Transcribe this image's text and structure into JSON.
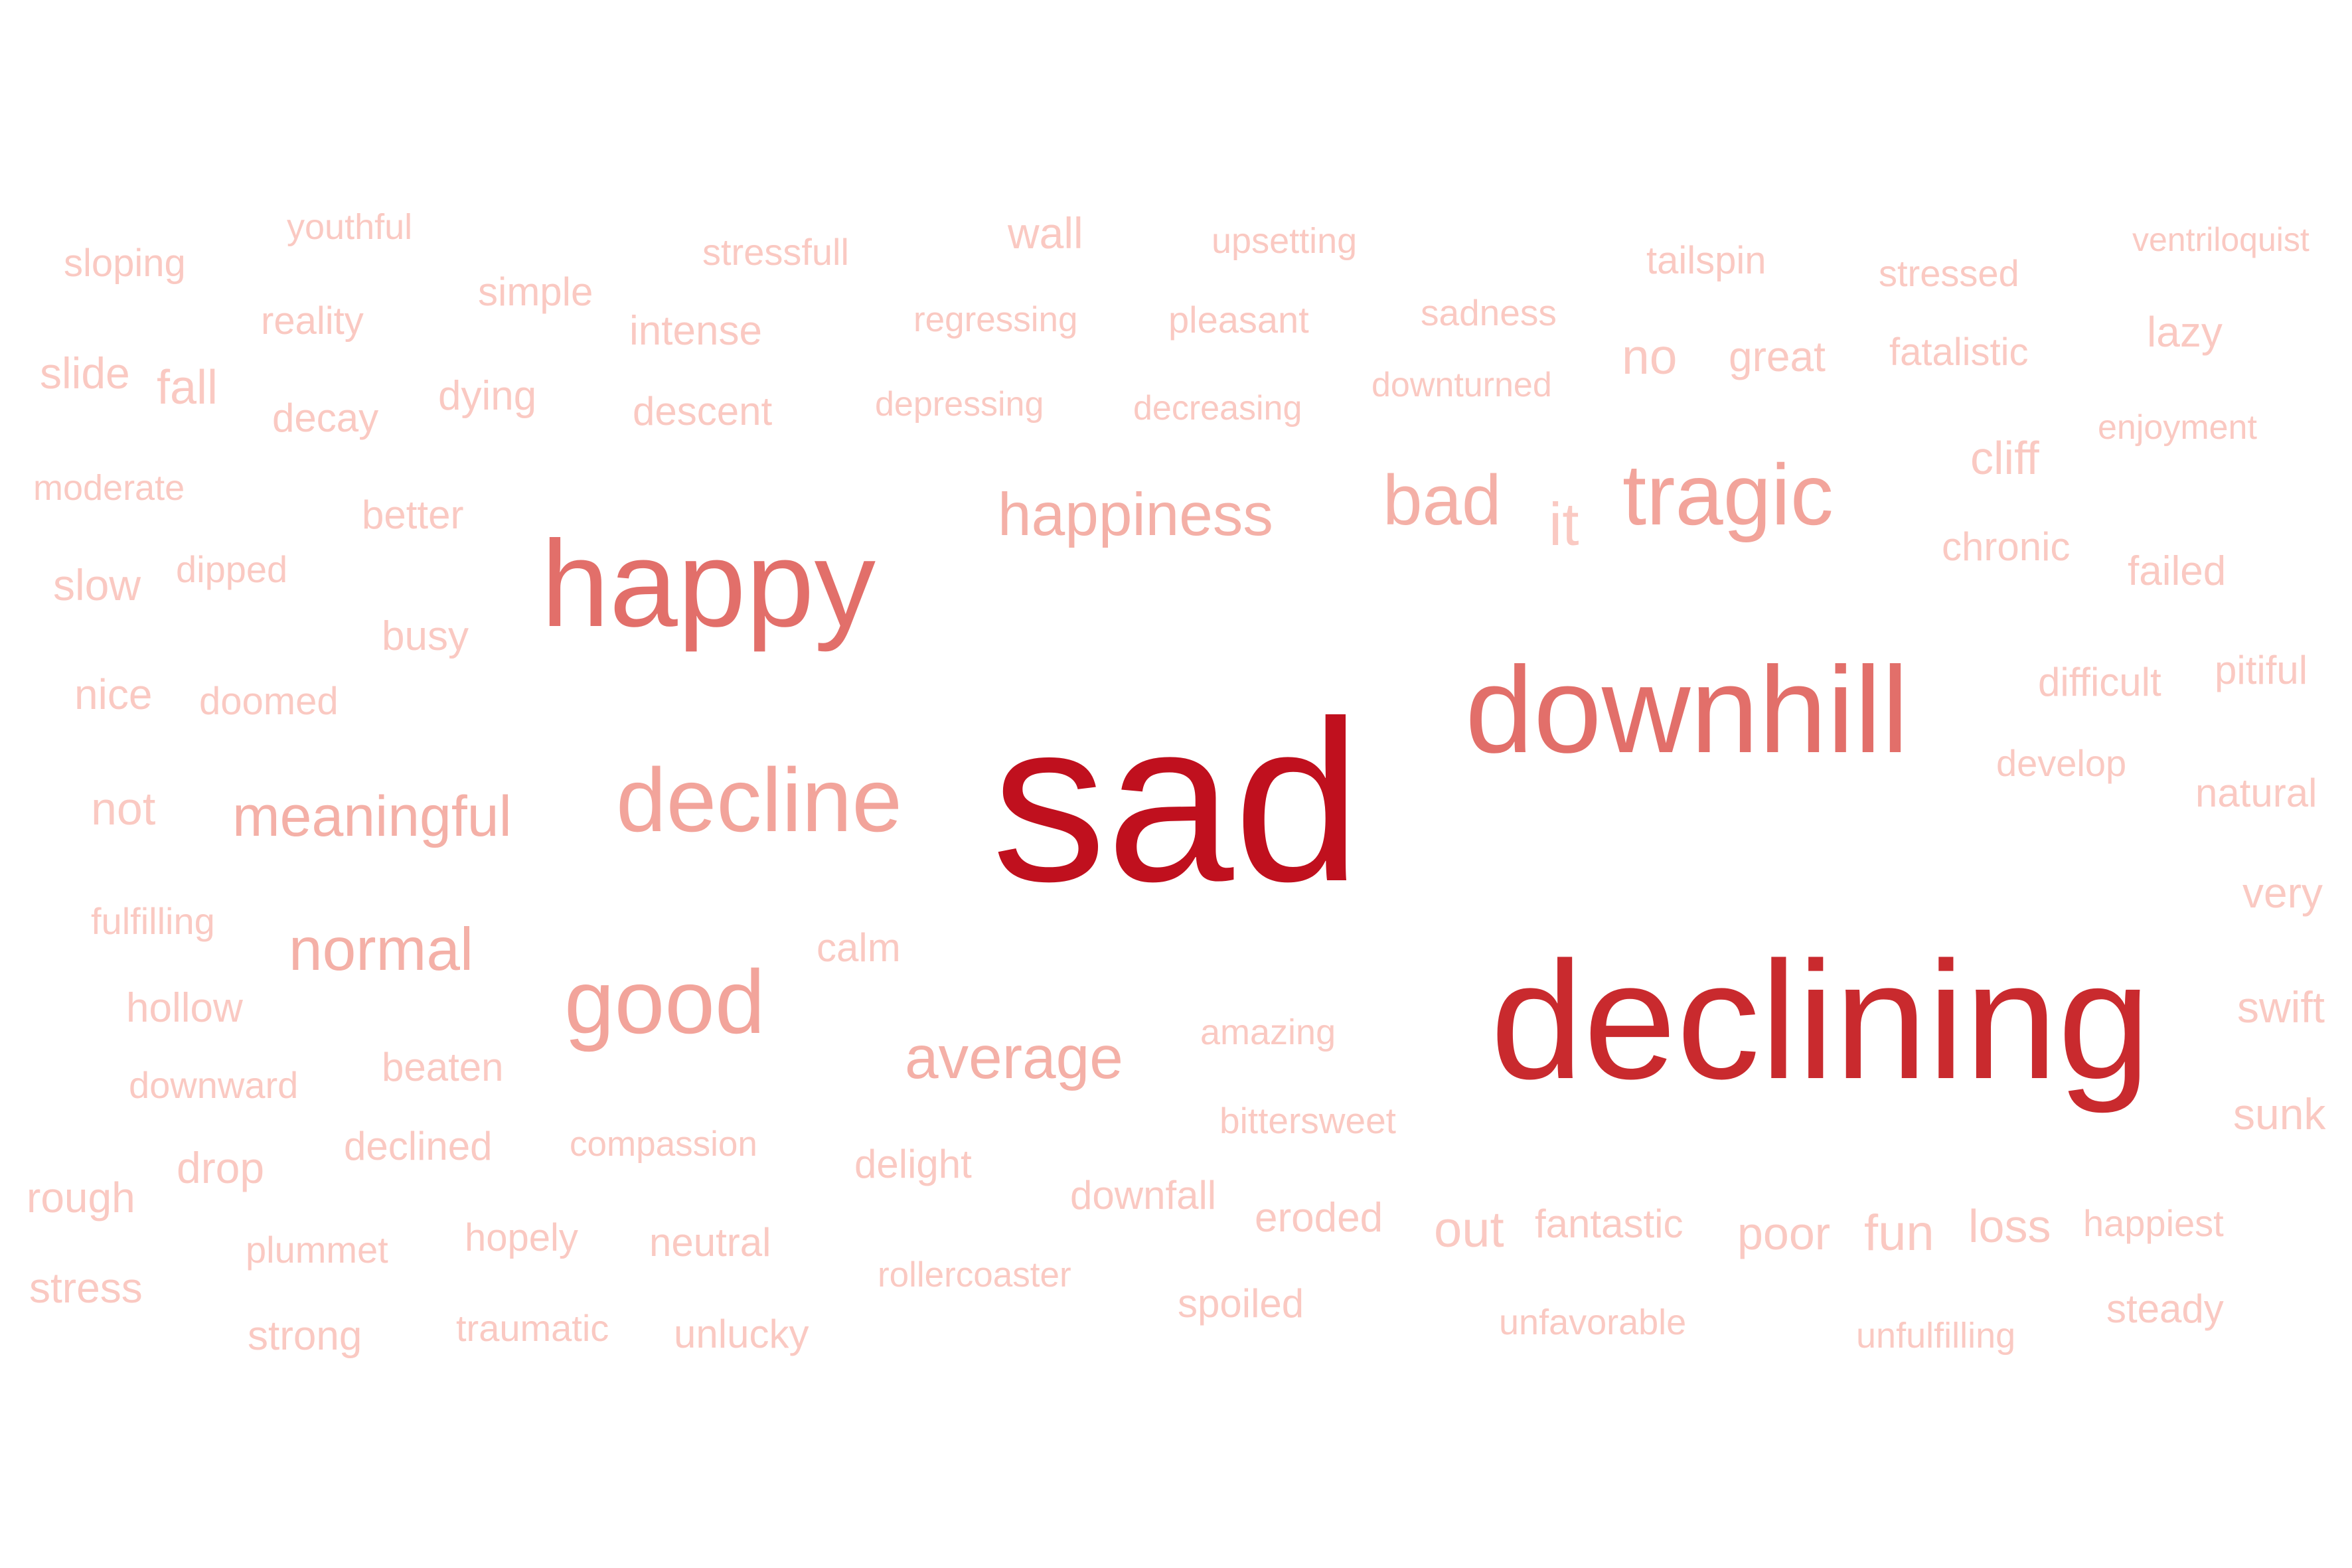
{
  "word_cloud": {
    "words": [
      {
        "text": "sad",
        "color": "#c0101e"
      },
      {
        "text": "declining",
        "color": "#c92a2e"
      },
      {
        "text": "downhill",
        "color": "#e26f6a"
      },
      {
        "text": "happy",
        "color": "#e26f6a"
      },
      {
        "text": "tragic",
        "color": "#f2a49b"
      },
      {
        "text": "decline",
        "color": "#f2a49b"
      },
      {
        "text": "good",
        "color": "#f2a49b"
      },
      {
        "text": "happiness",
        "color": "#f4b0a7"
      },
      {
        "text": "bad",
        "color": "#f4b0a7"
      },
      {
        "text": "average",
        "color": "#f4b0a7"
      },
      {
        "text": "normal",
        "color": "#f4b0a7"
      },
      {
        "text": "meaningful",
        "color": "#f4b0a7"
      },
      {
        "text": "it",
        "color": "#fac9c2"
      },
      {
        "text": "youthful",
        "color": "#fac9c2"
      },
      {
        "text": "sloping",
        "color": "#fac9c2"
      },
      {
        "text": "simple",
        "color": "#fac9c2"
      },
      {
        "text": "reality",
        "color": "#fac9c2"
      },
      {
        "text": "stressfull",
        "color": "#fac9c2"
      },
      {
        "text": "wall",
        "color": "#fac9c2"
      },
      {
        "text": "upsetting",
        "color": "#fac9c2"
      },
      {
        "text": "tailspin",
        "color": "#fac9c2"
      },
      {
        "text": "stressed",
        "color": "#fac9c2"
      },
      {
        "text": "ventriloquist",
        "color": "#fac9c2"
      },
      {
        "text": "intense",
        "color": "#fac9c2"
      },
      {
        "text": "regressing",
        "color": "#fac9c2"
      },
      {
        "text": "pleasant",
        "color": "#fac9c2"
      },
      {
        "text": "sadness",
        "color": "#fac9c2"
      },
      {
        "text": "no",
        "color": "#fac9c2"
      },
      {
        "text": "great",
        "color": "#fac9c2"
      },
      {
        "text": "fatalistic",
        "color": "#fac9c2"
      },
      {
        "text": "lazy",
        "color": "#fac9c2"
      },
      {
        "text": "slide",
        "color": "#fac9c2"
      },
      {
        "text": "fall",
        "color": "#fac9c2"
      },
      {
        "text": "decay",
        "color": "#fac9c2"
      },
      {
        "text": "dying",
        "color": "#fac9c2"
      },
      {
        "text": "descent",
        "color": "#fac9c2"
      },
      {
        "text": "depressing",
        "color": "#fac9c2"
      },
      {
        "text": "decreasing",
        "color": "#fac9c2"
      },
      {
        "text": "downturned",
        "color": "#fac9c2"
      },
      {
        "text": "enjoyment",
        "color": "#fac9c2"
      },
      {
        "text": "moderate",
        "color": "#fac9c2"
      },
      {
        "text": "better",
        "color": "#fac9c2"
      },
      {
        "text": "cliff",
        "color": "#fac9c2"
      },
      {
        "text": "slow",
        "color": "#fac9c2"
      },
      {
        "text": "dipped",
        "color": "#fac9c2"
      },
      {
        "text": "chronic",
        "color": "#fac9c2"
      },
      {
        "text": "failed",
        "color": "#fac9c2"
      },
      {
        "text": "busy",
        "color": "#fac9c2"
      },
      {
        "text": "nice",
        "color": "#fac9c2"
      },
      {
        "text": "doomed",
        "color": "#fac9c2"
      },
      {
        "text": "difficult",
        "color": "#fac9c2"
      },
      {
        "text": "pitiful",
        "color": "#fac9c2"
      },
      {
        "text": "develop",
        "color": "#fac9c2"
      },
      {
        "text": "not",
        "color": "#fac9c2"
      },
      {
        "text": "natural",
        "color": "#fac9c2"
      },
      {
        "text": "very",
        "color": "#fac9c2"
      },
      {
        "text": "fulfilling",
        "color": "#fac9c2"
      },
      {
        "text": "calm",
        "color": "#fac9c2"
      },
      {
        "text": "hollow",
        "color": "#fac9c2"
      },
      {
        "text": "swift",
        "color": "#fac9c2"
      },
      {
        "text": "amazing",
        "color": "#fac9c2"
      },
      {
        "text": "downward",
        "color": "#fac9c2"
      },
      {
        "text": "beaten",
        "color": "#fac9c2"
      },
      {
        "text": "sunk",
        "color": "#fac9c2"
      },
      {
        "text": "bittersweet",
        "color": "#fac9c2"
      },
      {
        "text": "declined",
        "color": "#fac9c2"
      },
      {
        "text": "compassion",
        "color": "#fac9c2"
      },
      {
        "text": "drop",
        "color": "#fac9c2"
      },
      {
        "text": "delight",
        "color": "#fac9c2"
      },
      {
        "text": "rough",
        "color": "#fac9c2"
      },
      {
        "text": "downfall",
        "color": "#fac9c2"
      },
      {
        "text": "eroded",
        "color": "#fac9c2"
      },
      {
        "text": "out",
        "color": "#fac9c2"
      },
      {
        "text": "fantastic",
        "color": "#fac9c2"
      },
      {
        "text": "poor",
        "color": "#fac9c2"
      },
      {
        "text": "fun",
        "color": "#fac9c2"
      },
      {
        "text": "loss",
        "color": "#fac9c2"
      },
      {
        "text": "happiest",
        "color": "#fac9c2"
      },
      {
        "text": "plummet",
        "color": "#fac9c2"
      },
      {
        "text": "hopely",
        "color": "#fac9c2"
      },
      {
        "text": "neutral",
        "color": "#fac9c2"
      },
      {
        "text": "rollercoaster",
        "color": "#fac9c2"
      },
      {
        "text": "stress",
        "color": "#fac9c2"
      },
      {
        "text": "spoiled",
        "color": "#fac9c2"
      },
      {
        "text": "steady",
        "color": "#fac9c2"
      },
      {
        "text": "strong",
        "color": "#fac9c2"
      },
      {
        "text": "traumatic",
        "color": "#fac9c2"
      },
      {
        "text": "unlucky",
        "color": "#fac9c2"
      },
      {
        "text": "unfavorable",
        "color": "#fac9c2"
      },
      {
        "text": "unfulfilling",
        "color": "#fac9c2"
      }
    ]
  }
}
